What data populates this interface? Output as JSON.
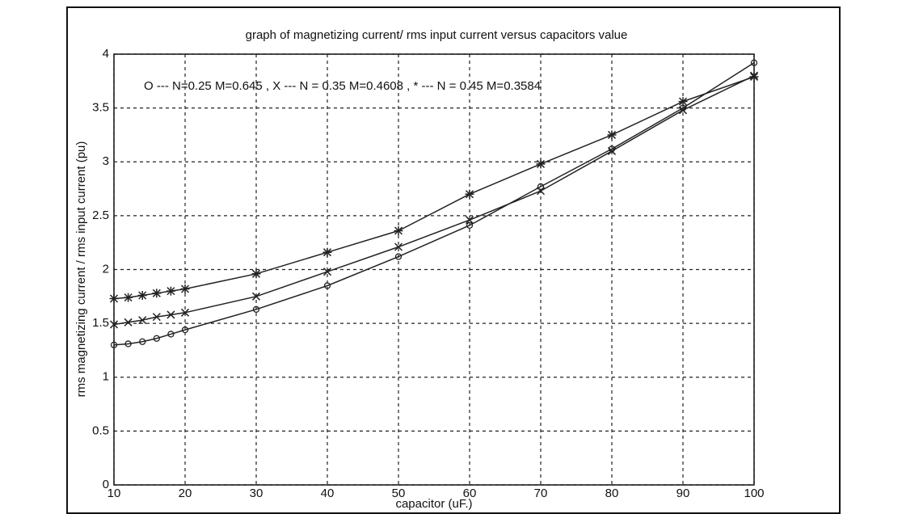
{
  "chart_data": {
    "type": "line",
    "title": "graph of magnetizing current/ rms input current  versus capacitors value",
    "annotation": "O --- N=0.25 M=0.645 , X --- N = 0.35 M=0.4608 , * --- N = 0.45 M=0.3584",
    "x_label": "capacitor (uF.)",
    "y_label": "rms magnetizing current / rms input current  (pu)",
    "x": [
      10,
      12,
      14,
      16,
      18,
      20,
      30,
      40,
      50,
      60,
      70,
      80,
      90,
      100
    ],
    "series": [
      {
        "marker": "o",
        "color": "#222222",
        "values": [
          1.3,
          1.31,
          1.33,
          1.36,
          1.4,
          1.44,
          1.63,
          1.85,
          2.12,
          2.41,
          2.77,
          3.12,
          3.5,
          3.92
        ]
      },
      {
        "marker": "x",
        "color": "#222222",
        "values": [
          1.49,
          1.51,
          1.53,
          1.56,
          1.58,
          1.6,
          1.75,
          1.98,
          2.21,
          2.46,
          2.73,
          3.1,
          3.48,
          3.8
        ]
      },
      {
        "marker": "*",
        "color": "#222222",
        "values": [
          1.73,
          1.74,
          1.76,
          1.78,
          1.8,
          1.82,
          1.96,
          2.16,
          2.36,
          2.7,
          2.98,
          3.25,
          3.56,
          3.79
        ]
      }
    ],
    "xlim": [
      10,
      100
    ],
    "ylim": [
      0,
      4
    ],
    "xticks": [
      10,
      20,
      30,
      40,
      50,
      60,
      70,
      80,
      90,
      100
    ],
    "yticks": [
      0,
      0.5,
      1,
      1.5,
      2,
      2.5,
      3,
      3.5,
      4
    ],
    "grid": true
  }
}
